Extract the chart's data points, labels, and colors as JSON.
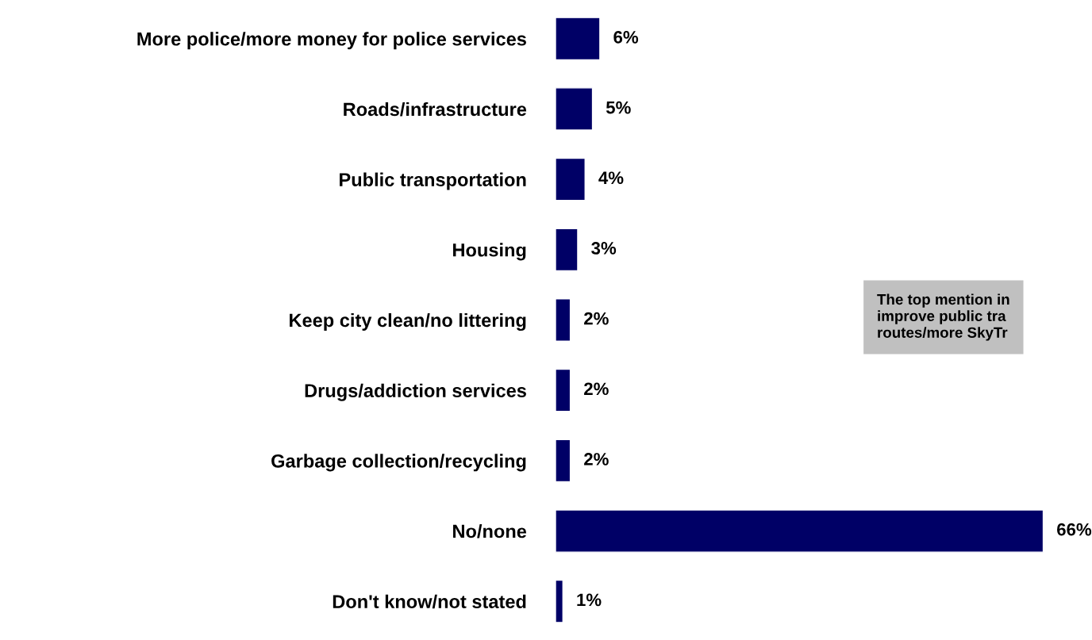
{
  "chart_data": {
    "type": "bar",
    "orientation": "horizontal",
    "categories": [
      "More police/more money for police services",
      "Roads/infrastructure",
      "Public transportation",
      "Housing",
      "Keep city clean/no littering",
      "Drugs/addiction services",
      "Garbage collection/recycling",
      "No/none",
      "Don't know/not stated"
    ],
    "values": [
      6,
      5,
      4,
      3,
      2,
      2,
      2,
      66,
      1
    ],
    "value_labels": [
      "6%",
      "5%",
      "4%",
      "3%",
      "2%",
      "2%",
      "2%",
      "66%",
      "1%"
    ],
    "color": "#000066",
    "tick_labels": "y",
    "grid": false,
    "legend": false,
    "annotations": [
      "The top mention in\nimprove public tra\nroutes/more SkyTr"
    ]
  }
}
